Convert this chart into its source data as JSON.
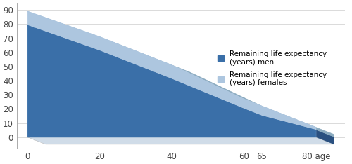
{
  "x_ages": [
    0,
    20,
    40,
    60,
    65,
    80
  ],
  "men_values": [
    79,
    61,
    41,
    20,
    15,
    5
  ],
  "women_values": [
    89,
    71,
    51,
    27,
    22,
    7
  ],
  "men_color": "#3a6fa8",
  "men_color_dark": "#2a5080",
  "men_color_bottom": "#2a5080",
  "women_color": "#adc6df",
  "women_color_dark": "#8aaabf",
  "men_label": "Remaining life expectancy\n(years) men",
  "women_label": "Remaining life expectancy\n(years) females",
  "yticks": [
    0,
    10,
    20,
    30,
    40,
    50,
    60,
    70,
    80,
    90
  ],
  "xtick_labels": [
    "0",
    "20",
    "40",
    "60",
    "65",
    "80 age"
  ],
  "ylim": [
    -8,
    95
  ],
  "xlim": [
    -3,
    88
  ],
  "bg_color": "#ffffff",
  "legend_fontsize": 7.5,
  "tick_fontsize": 8.5,
  "depth_x": 5,
  "depth_y": -5
}
